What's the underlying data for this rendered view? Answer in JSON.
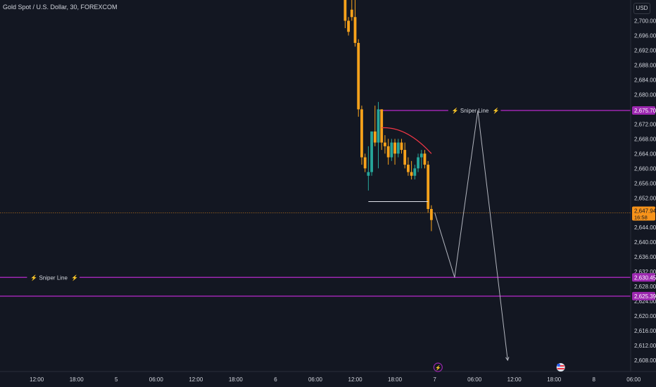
{
  "header": {
    "title": "Gold Spot / U.S. Dollar, 30, FOREXCOM",
    "currency": "USD"
  },
  "chart_data": {
    "type": "candlestick",
    "symbol": "Gold Spot / U.S. Dollar",
    "interval": "30",
    "exchange": "FOREXCOM",
    "currency": "USD",
    "ylim": [
      2607,
      2712
    ],
    "yticks": [
      2700,
      2696,
      2692,
      2688,
      2684,
      2680,
      2672,
      2668,
      2664,
      2660,
      2656,
      2652,
      2644,
      2640,
      2636,
      2632,
      2628,
      2624,
      2620,
      2616,
      2612,
      2608
    ],
    "ytick_labels": [
      "2,700.00",
      "2,696.00",
      "2,692.00",
      "2,688.00",
      "2,684.00",
      "2,680.00",
      "2,672.00",
      "2,668.00",
      "2,664.00",
      "2,660.00",
      "2,656.00",
      "2,652.00",
      "2,644.00",
      "2,640.00",
      "2,636.00",
      "2,632.00",
      "2,628.00",
      "2,624.00",
      "2,620.00",
      "2,616.00",
      "2,612.00",
      "2,608.00"
    ],
    "xticks": [
      {
        "label": "12:00",
        "bar": -103
      },
      {
        "label": "18:00",
        "bar": -91
      },
      {
        "label": "5",
        "bar": -79
      },
      {
        "label": "06:00",
        "bar": -67
      },
      {
        "label": "12:00",
        "bar": -55
      },
      {
        "label": "18:00",
        "bar": -43
      },
      {
        "label": "6",
        "bar": -31
      },
      {
        "label": "06:00",
        "bar": -19
      },
      {
        "label": "12:00",
        "bar": -7
      },
      {
        "label": "18:00",
        "bar": 5
      },
      {
        "label": "7",
        "bar": 17
      },
      {
        "label": "06:00",
        "bar": 29
      },
      {
        "label": "12:00",
        "bar": 41
      },
      {
        "label": "18:00",
        "bar": 53
      },
      {
        "label": "8",
        "bar": 65
      },
      {
        "label": "06:00",
        "bar": 77
      }
    ],
    "candles": [
      {
        "bar": -17,
        "o": 2712,
        "h": 2713,
        "l": 2708,
        "c": 2712
      },
      {
        "bar": -10,
        "o": 2712,
        "h": 2713,
        "l": 2698,
        "c": 2700
      },
      {
        "bar": -9,
        "o": 2700,
        "h": 2701,
        "l": 2696,
        "c": 2697
      },
      {
        "bar": -8,
        "o": 2703,
        "h": 2706,
        "l": 2700,
        "c": 2701
      },
      {
        "bar": -7,
        "o": 2701,
        "h": 2708,
        "l": 2693,
        "c": 2694
      },
      {
        "bar": -6,
        "o": 2694,
        "h": 2695,
        "l": 2674,
        "c": 2676
      },
      {
        "bar": -5,
        "o": 2676,
        "h": 2677,
        "l": 2661,
        "c": 2663
      },
      {
        "bar": -4,
        "o": 2663,
        "h": 2664,
        "l": 2659,
        "c": 2660
      },
      {
        "bar": -3,
        "o": 2658,
        "h": 2666,
        "l": 2654,
        "c": 2659
      },
      {
        "bar": -2,
        "o": 2659,
        "h": 2670,
        "l": 2658,
        "c": 2670
      },
      {
        "bar": -1,
        "o": 2670,
        "h": 2677,
        "l": 2666,
        "c": 2667
      },
      {
        "bar": 0,
        "o": 2667,
        "h": 2678,
        "l": 2660,
        "c": 2676
      },
      {
        "bar": 1,
        "o": 2676,
        "h": 2676,
        "l": 2665,
        "c": 2667
      },
      {
        "bar": 2,
        "o": 2667,
        "h": 2669,
        "l": 2664,
        "c": 2666
      },
      {
        "bar": 3,
        "o": 2666,
        "h": 2668,
        "l": 2661,
        "c": 2663
      },
      {
        "bar": 4,
        "o": 2663,
        "h": 2668,
        "l": 2662,
        "c": 2667
      },
      {
        "bar": 5,
        "o": 2667,
        "h": 2668,
        "l": 2661,
        "c": 2664
      },
      {
        "bar": 6,
        "o": 2664,
        "h": 2668,
        "l": 2663,
        "c": 2667
      },
      {
        "bar": 7,
        "o": 2667,
        "h": 2668,
        "l": 2664,
        "c": 2665
      },
      {
        "bar": 8,
        "o": 2665,
        "h": 2667,
        "l": 2660,
        "c": 2661
      },
      {
        "bar": 9,
        "o": 2661,
        "h": 2663,
        "l": 2658,
        "c": 2659
      },
      {
        "bar": 10,
        "o": 2659,
        "h": 2662,
        "l": 2657,
        "c": 2658
      },
      {
        "bar": 11,
        "o": 2658,
        "h": 2661,
        "l": 2657,
        "c": 2660
      },
      {
        "bar": 12,
        "o": 2660,
        "h": 2664,
        "l": 2659,
        "c": 2663
      },
      {
        "bar": 13,
        "o": 2663,
        "h": 2665,
        "l": 2660,
        "c": 2664
      },
      {
        "bar": 14,
        "o": 2664,
        "h": 2665,
        "l": 2660,
        "c": 2661
      },
      {
        "bar": 15,
        "o": 2661,
        "h": 2662,
        "l": 2648,
        "c": 2649
      },
      {
        "bar": 16,
        "o": 2649,
        "h": 2650,
        "l": 2643,
        "c": 2646
      }
    ],
    "current_price": {
      "value": 2647.94,
      "label": "2,647.94",
      "countdown": "16:58"
    },
    "levels": [
      {
        "name": "Sniper Line",
        "value": 2675.7,
        "label": "2,675.70",
        "text": "Sniper Line",
        "from_bar": 0,
        "text_bar": 29
      },
      {
        "name": "Sniper Line",
        "value": 2630.45,
        "label": "2,630.45",
        "text": "Sniper Line",
        "from_bar": -200,
        "text_bar": -98
      },
      {
        "name": "",
        "value": 2625.39,
        "label": "2,625.39",
        "text": "",
        "from_bar": -200,
        "text_bar": null
      }
    ],
    "trendline": {
      "from": {
        "bar": 1,
        "price": 2671
      },
      "to": {
        "bar": 16,
        "price": 2664
      }
    },
    "range_line": {
      "price": 2651,
      "from_bar": -3,
      "to_bar": 15
    },
    "projection": [
      {
        "bar": 17,
        "price": 2648
      },
      {
        "bar": 23,
        "price": 2630.45
      },
      {
        "bar": 30,
        "price": 2675.7
      },
      {
        "bar": 39,
        "price": 2608
      }
    ],
    "colors": {
      "background": "#131722",
      "up": "#26a69a",
      "down": "#f7a21b",
      "sniper_line": "#9c27b0",
      "price_line": "#f7931a",
      "trendline": "#f23645",
      "projection": "#b2b5be",
      "axis_text": "#d1d4dc"
    }
  }
}
